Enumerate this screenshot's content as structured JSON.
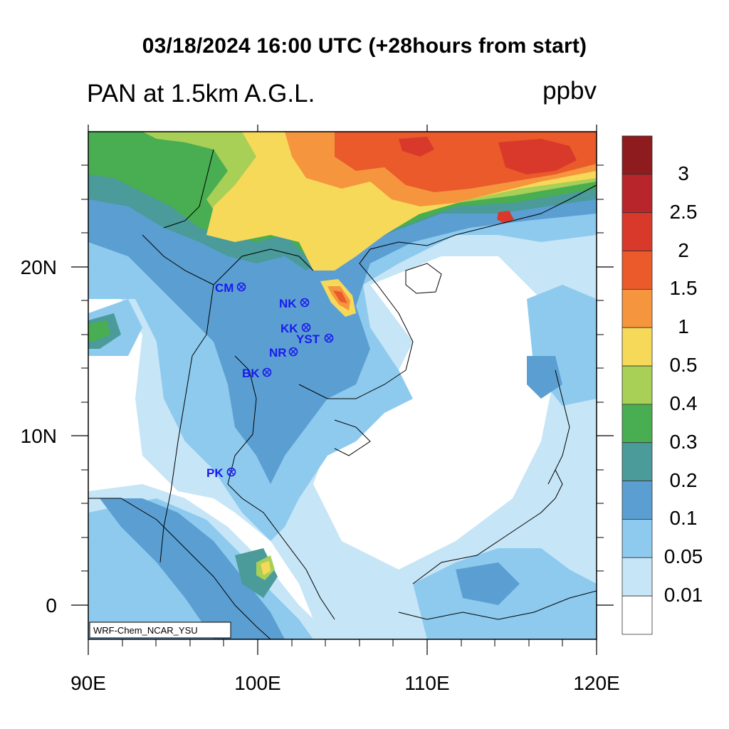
{
  "title": "03/18/2024 16:00 UTC (+28hours from start)",
  "subtitle": "PAN at 1.5km A.G.L.",
  "units": "ppbv",
  "credit": "WRF-Chem_NCAR_YSU",
  "lat_labels": [
    "20N",
    "10N",
    "0"
  ],
  "lon_labels": [
    "90E",
    "100E",
    "110E",
    "120E"
  ],
  "colorbar": {
    "labels": [
      "3",
      "2.5",
      "2",
      "1.5",
      "1",
      "0.5",
      "0.4",
      "0.3",
      "0.2",
      "0.1",
      "0.05",
      "0.01"
    ],
    "colors": [
      "#8e1b1d",
      "#b8252a",
      "#d9392a",
      "#ea5a2b",
      "#f5953e",
      "#f7d95a",
      "#a8cf56",
      "#49ad52",
      "#4a9b9a",
      "#5b9fd2",
      "#8ecaee",
      "#c6e5f6",
      "#ffffff"
    ]
  },
  "stations": [
    {
      "code": "CM"
    },
    {
      "code": "NK"
    },
    {
      "code": "KK"
    },
    {
      "code": "YST"
    },
    {
      "code": "NR"
    },
    {
      "code": "BK"
    },
    {
      "code": "PK"
    }
  ]
}
